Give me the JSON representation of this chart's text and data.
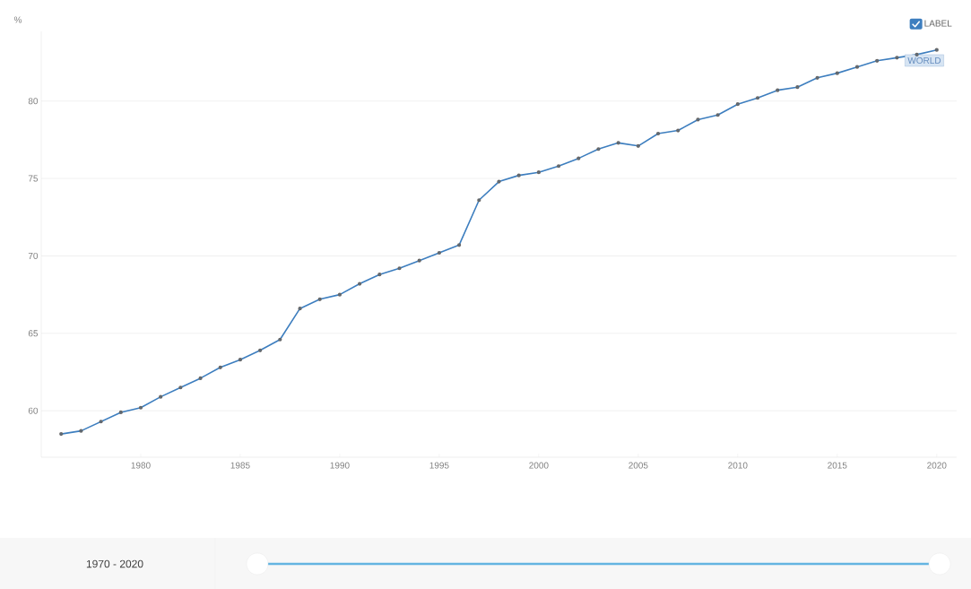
{
  "chart_data": {
    "type": "line",
    "ylabel": "%",
    "x": [
      1976,
      1977,
      1978,
      1979,
      1980,
      1981,
      1982,
      1983,
      1984,
      1985,
      1986,
      1987,
      1988,
      1989,
      1990,
      1991,
      1992,
      1993,
      1994,
      1995,
      1996,
      1997,
      1998,
      1999,
      2000,
      2001,
      2002,
      2003,
      2004,
      2005,
      2006,
      2007,
      2008,
      2009,
      2010,
      2011,
      2012,
      2013,
      2014,
      2015,
      2016,
      2017,
      2018,
      2019,
      2020
    ],
    "series": [
      {
        "name": "LABEL",
        "color": "#3d7ebf",
        "values": [
          58.5,
          58.7,
          59.3,
          59.9,
          60.2,
          60.9,
          61.5,
          62.1,
          62.8,
          63.3,
          63.9,
          64.6,
          66.6,
          67.2,
          67.5,
          68.2,
          68.8,
          69.2,
          69.7,
          70.2,
          70.7,
          73.6,
          74.8,
          75.2,
          75.4,
          75.8,
          76.3,
          76.9,
          77.3,
          77.1,
          77.9,
          78.1,
          78.8,
          79.1,
          79.8,
          80.2,
          80.7,
          80.9,
          81.5,
          81.8,
          82.2,
          82.6,
          82.8,
          83.0,
          83.3
        ]
      }
    ],
    "xlim": [
      1975,
      2021
    ],
    "xticks": [
      1980,
      1985,
      1990,
      1995,
      2000,
      2005,
      2010,
      2015,
      2020
    ],
    "ylim": [
      57,
      84.5
    ],
    "yticks": [
      60,
      65,
      70,
      75,
      80
    ],
    "grid": "y",
    "legend": "top right",
    "marker": "circle",
    "line_style": "solid",
    "annotations": [
      {
        "text": "WORLD",
        "x": 2020,
        "y": 83.3
      },
      "1970 - 2020"
    ]
  }
}
